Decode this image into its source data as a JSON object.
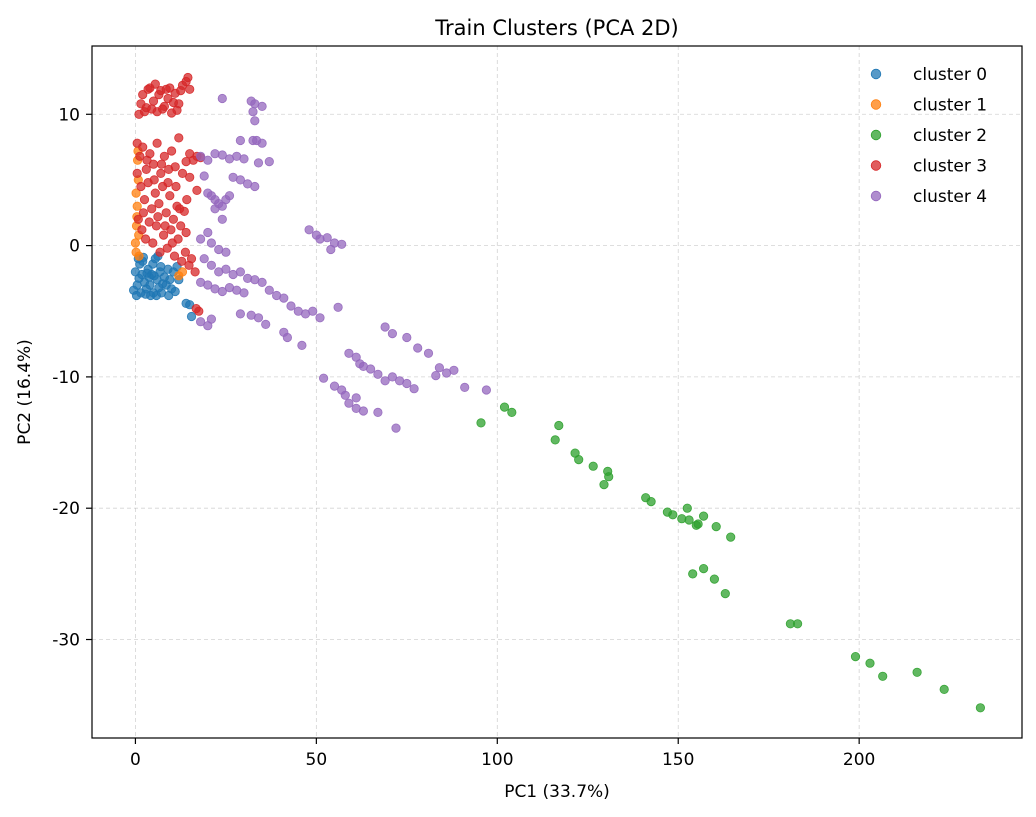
{
  "chart_data": {
    "type": "scatter",
    "title": "Train Clusters (PCA 2D)",
    "xlabel": "PC1 (33.7%)",
    "ylabel": "PC2 (16.4%)",
    "xlim": [
      -12,
      245
    ],
    "ylim": [
      -37.5,
      15.2
    ],
    "xticks": [
      0,
      50,
      100,
      150,
      200
    ],
    "yticks": [
      10,
      0,
      -10,
      -20,
      -30
    ],
    "xtick_labels": [
      "0",
      "50",
      "100",
      "150",
      "200"
    ],
    "ytick_labels": [
      "10",
      "0",
      "-10",
      "-20",
      "-30"
    ],
    "grid": true,
    "legend_position": "top-right",
    "marker_alpha": 0.75,
    "series": [
      {
        "name": "cluster 0",
        "color": "#1f77b4",
        "points": [
          [
            -0.5,
            -3.4
          ],
          [
            0.5,
            -3.0
          ],
          [
            1.0,
            -2.5
          ],
          [
            1.5,
            -3.6
          ],
          [
            2.0,
            -1.2
          ],
          [
            2.5,
            -2.8
          ],
          [
            3.0,
            -3.3
          ],
          [
            3.5,
            -1.8
          ],
          [
            4.0,
            -3.0
          ],
          [
            4.5,
            -2.2
          ],
          [
            5.0,
            -3.6
          ],
          [
            5.5,
            -1.0
          ],
          [
            6.0,
            -2.6
          ],
          [
            6.5,
            -3.2
          ],
          [
            7.0,
            -1.6
          ],
          [
            7.5,
            -2.9
          ],
          [
            0.0,
            -2.0
          ],
          [
            1.2,
            -1.4
          ],
          [
            2.8,
            -3.7
          ],
          [
            3.8,
            -2.4
          ],
          [
            4.8,
            -1.4
          ],
          [
            5.8,
            -3.8
          ],
          [
            6.8,
            -2.0
          ],
          [
            8.0,
            -2.4
          ],
          [
            8.5,
            -3.0
          ],
          [
            9.0,
            -1.8
          ],
          [
            9.5,
            -2.6
          ],
          [
            10.0,
            -3.3
          ],
          [
            11.0,
            -3.5
          ],
          [
            10.5,
            -2.0
          ],
          [
            0.3,
            -3.8
          ],
          [
            1.8,
            -2.2
          ],
          [
            2.2,
            -0.9
          ],
          [
            3.2,
            -2.1
          ],
          [
            4.2,
            -3.8
          ],
          [
            5.2,
            -2.3
          ],
          [
            6.2,
            -0.8
          ],
          [
            7.2,
            -3.6
          ],
          [
            0.8,
            -1.0
          ],
          [
            12.0,
            -2.6
          ],
          [
            14.0,
            -4.4
          ],
          [
            15.0,
            -4.5
          ],
          [
            15.5,
            -5.4
          ],
          [
            11.5,
            -1.6
          ],
          [
            9.2,
            -3.8
          ]
        ]
      },
      {
        "name": "cluster 1",
        "color": "#ff7f0e",
        "points": [
          [
            0.0,
            0.2
          ],
          [
            0.3,
            1.5
          ],
          [
            0.5,
            3.0
          ],
          [
            0.2,
            -0.5
          ],
          [
            0.8,
            5.0
          ],
          [
            0.6,
            6.5
          ],
          [
            0.4,
            2.2
          ],
          [
            1.0,
            -0.8
          ],
          [
            0.2,
            4.0
          ],
          [
            0.7,
            7.2
          ],
          [
            12.0,
            -2.3
          ],
          [
            13.0,
            -2.0
          ],
          [
            0.9,
            0.8
          ]
        ]
      },
      {
        "name": "cluster 2",
        "color": "#2ca02c",
        "points": [
          [
            95.5,
            -13.5
          ],
          [
            102,
            -12.3
          ],
          [
            104,
            -12.7
          ],
          [
            116,
            -14.8
          ],
          [
            117,
            -13.7
          ],
          [
            121.5,
            -15.8
          ],
          [
            122.5,
            -16.3
          ],
          [
            126.5,
            -16.8
          ],
          [
            129.5,
            -18.2
          ],
          [
            130.5,
            -17.2
          ],
          [
            130.8,
            -17.6
          ],
          [
            141,
            -19.2
          ],
          [
            142.5,
            -19.5
          ],
          [
            147,
            -20.3
          ],
          [
            148.5,
            -20.5
          ],
          [
            151,
            -20.8
          ],
          [
            152.5,
            -20.0
          ],
          [
            153,
            -20.9
          ],
          [
            155,
            -21.3
          ],
          [
            155.5,
            -21.2
          ],
          [
            157,
            -20.6
          ],
          [
            160.5,
            -21.4
          ],
          [
            164.5,
            -22.2
          ],
          [
            154,
            -25.0
          ],
          [
            157,
            -24.6
          ],
          [
            160,
            -25.4
          ],
          [
            163,
            -26.5
          ],
          [
            181,
            -28.8
          ],
          [
            183,
            -28.8
          ],
          [
            199,
            -31.3
          ],
          [
            203,
            -31.8
          ],
          [
            206.5,
            -32.8
          ],
          [
            216,
            -32.5
          ],
          [
            223.5,
            -33.8
          ],
          [
            233.5,
            -35.2
          ]
        ]
      },
      {
        "name": "cluster 3",
        "color": "#d62728",
        "points": [
          [
            1.0,
            10.0
          ],
          [
            2.0,
            11.5
          ],
          [
            3.0,
            10.5
          ],
          [
            4.0,
            12.0
          ],
          [
            5.0,
            11.0
          ],
          [
            6.0,
            10.2
          ],
          [
            7.0,
            11.8
          ],
          [
            8.0,
            10.6
          ],
          [
            9.0,
            11.2
          ],
          [
            10.0,
            10.1
          ],
          [
            11.0,
            11.6
          ],
          [
            12.0,
            10.8
          ],
          [
            13.0,
            12.2
          ],
          [
            14.0,
            12.5
          ],
          [
            1.5,
            10.8
          ],
          [
            3.5,
            11.9
          ],
          [
            5.5,
            12.3
          ],
          [
            7.5,
            10.4
          ],
          [
            9.5,
            12.0
          ],
          [
            11.5,
            10.3
          ],
          [
            2.5,
            10.2
          ],
          [
            6.5,
            11.5
          ],
          [
            8.5,
            11.9
          ],
          [
            10.5,
            10.9
          ],
          [
            12.5,
            11.8
          ],
          [
            4.5,
            10.4
          ],
          [
            14.5,
            12.8
          ],
          [
            15.0,
            11.9
          ],
          [
            0.5,
            7.8
          ],
          [
            1.2,
            6.8
          ],
          [
            2.0,
            7.5
          ],
          [
            3.0,
            5.8
          ],
          [
            4.0,
            7.0
          ],
          [
            5.0,
            6.2
          ],
          [
            6.0,
            7.8
          ],
          [
            7.0,
            5.5
          ],
          [
            8.0,
            6.8
          ],
          [
            9.0,
            4.8
          ],
          [
            10.0,
            7.2
          ],
          [
            11.0,
            6.0
          ],
          [
            12.0,
            8.2
          ],
          [
            13.0,
            5.5
          ],
          [
            14.0,
            6.4
          ],
          [
            15.0,
            7.0
          ],
          [
            16.0,
            6.5
          ],
          [
            17.0,
            6.8
          ],
          [
            18.0,
            6.7
          ],
          [
            1.5,
            4.5
          ],
          [
            2.5,
            3.5
          ],
          [
            3.5,
            4.8
          ],
          [
            4.5,
            2.8
          ],
          [
            5.5,
            4.0
          ],
          [
            6.5,
            3.2
          ],
          [
            7.5,
            4.5
          ],
          [
            8.5,
            2.5
          ],
          [
            9.5,
            3.8
          ],
          [
            10.5,
            2.0
          ],
          [
            11.5,
            3.0
          ],
          [
            12.5,
            1.5
          ],
          [
            13.5,
            2.6
          ],
          [
            14.0,
            1.0
          ],
          [
            0.8,
            2.0
          ],
          [
            1.8,
            1.2
          ],
          [
            2.8,
            0.5
          ],
          [
            3.8,
            1.8
          ],
          [
            4.8,
            0.2
          ],
          [
            5.8,
            1.5
          ],
          [
            6.8,
            -0.5
          ],
          [
            7.8,
            0.8
          ],
          [
            8.8,
            -0.2
          ],
          [
            9.8,
            1.2
          ],
          [
            10.8,
            -0.8
          ],
          [
            11.8,
            0.5
          ],
          [
            12.8,
            -1.2
          ],
          [
            13.8,
            -0.5
          ],
          [
            14.8,
            -1.5
          ],
          [
            15.5,
            -1.0
          ],
          [
            16.5,
            -2.0
          ],
          [
            17.0,
            4.2
          ],
          [
            15.0,
            5.2
          ],
          [
            0.5,
            5.5
          ],
          [
            3.2,
            6.5
          ],
          [
            5.2,
            5.0
          ],
          [
            7.2,
            6.2
          ],
          [
            9.2,
            5.8
          ],
          [
            11.2,
            4.5
          ],
          [
            2.2,
            2.5
          ],
          [
            6.2,
            2.2
          ],
          [
            8.2,
            1.5
          ],
          [
            10.2,
            0.2
          ],
          [
            12.2,
            2.8
          ],
          [
            14.2,
            3.5
          ],
          [
            17.5,
            -5.0
          ],
          [
            16.8,
            -4.8
          ]
        ]
      },
      {
        "name": "cluster 4",
        "color": "#9467bd",
        "points": [
          [
            24,
            11.2
          ],
          [
            32,
            11.0
          ],
          [
            33,
            10.8
          ],
          [
            35,
            10.6
          ],
          [
            32.5,
            10.2
          ],
          [
            33,
            9.5
          ],
          [
            32.5,
            8.0
          ],
          [
            33.5,
            8.0
          ],
          [
            29,
            8.0
          ],
          [
            35,
            7.8
          ],
          [
            18,
            6.8
          ],
          [
            20,
            6.5
          ],
          [
            22,
            7.0
          ],
          [
            24,
            6.9
          ],
          [
            26,
            6.6
          ],
          [
            28,
            6.8
          ],
          [
            30,
            6.6
          ],
          [
            34,
            6.3
          ],
          [
            37,
            6.4
          ],
          [
            19,
            5.3
          ],
          [
            21,
            3.8
          ],
          [
            23,
            3.2
          ],
          [
            25,
            3.5
          ],
          [
            27,
            5.2
          ],
          [
            29,
            5.0
          ],
          [
            31,
            4.7
          ],
          [
            33,
            4.5
          ],
          [
            22,
            2.8
          ],
          [
            24,
            2.0
          ],
          [
            20,
            1.0
          ],
          [
            18,
            0.5
          ],
          [
            21,
            0.2
          ],
          [
            23,
            -0.3
          ],
          [
            25,
            -0.5
          ],
          [
            19,
            -1.0
          ],
          [
            21,
            -1.5
          ],
          [
            23,
            -2.0
          ],
          [
            25,
            -1.8
          ],
          [
            27,
            -2.2
          ],
          [
            29,
            -2.0
          ],
          [
            31,
            -2.5
          ],
          [
            33,
            -2.6
          ],
          [
            35,
            -2.8
          ],
          [
            18,
            -2.8
          ],
          [
            20,
            -3.0
          ],
          [
            22,
            -3.3
          ],
          [
            24,
            -3.5
          ],
          [
            26,
            -3.2
          ],
          [
            28,
            -3.4
          ],
          [
            30,
            -3.6
          ],
          [
            37,
            -3.4
          ],
          [
            39,
            -3.8
          ],
          [
            41,
            -4.0
          ],
          [
            43,
            -4.6
          ],
          [
            45,
            -5.0
          ],
          [
            47,
            -5.2
          ],
          [
            49,
            -5.0
          ],
          [
            51,
            -5.5
          ],
          [
            56,
            -4.7
          ],
          [
            41,
            -6.6
          ],
          [
            42,
            -7.0
          ],
          [
            46,
            -7.6
          ],
          [
            36,
            -6.0
          ],
          [
            34,
            -5.5
          ],
          [
            32,
            -5.3
          ],
          [
            29,
            -5.2
          ],
          [
            21,
            -5.6
          ],
          [
            20,
            -6.1
          ],
          [
            18,
            -5.8
          ],
          [
            48,
            1.2
          ],
          [
            50,
            0.8
          ],
          [
            51,
            0.5
          ],
          [
            53,
            0.6
          ],
          [
            55,
            0.2
          ],
          [
            57,
            0.1
          ],
          [
            54,
            -0.3
          ],
          [
            59,
            -8.2
          ],
          [
            61,
            -8.5
          ],
          [
            62,
            -9.0
          ],
          [
            63,
            -9.2
          ],
          [
            65,
            -9.4
          ],
          [
            67,
            -9.8
          ],
          [
            69,
            -10.3
          ],
          [
            71,
            -10.0
          ],
          [
            73,
            -10.3
          ],
          [
            75,
            -10.5
          ],
          [
            77,
            -10.9
          ],
          [
            69,
            -6.2
          ],
          [
            71,
            -6.7
          ],
          [
            75,
            -7.0
          ],
          [
            78,
            -7.8
          ],
          [
            81,
            -8.2
          ],
          [
            84,
            -9.3
          ],
          [
            88,
            -9.5
          ],
          [
            86,
            -9.7
          ],
          [
            83,
            -9.9
          ],
          [
            91,
            -10.8
          ],
          [
            97,
            -11.0
          ],
          [
            52,
            -10.1
          ],
          [
            55,
            -10.7
          ],
          [
            57,
            -11.0
          ],
          [
            58,
            -11.4
          ],
          [
            59,
            -12.0
          ],
          [
            61,
            -11.6
          ],
          [
            61,
            -12.4
          ],
          [
            63,
            -12.6
          ],
          [
            67,
            -12.7
          ],
          [
            72,
            -13.9
          ],
          [
            22,
            3.5
          ],
          [
            24,
            3.0
          ],
          [
            26,
            3.8
          ],
          [
            20,
            4.0
          ]
        ]
      }
    ]
  }
}
